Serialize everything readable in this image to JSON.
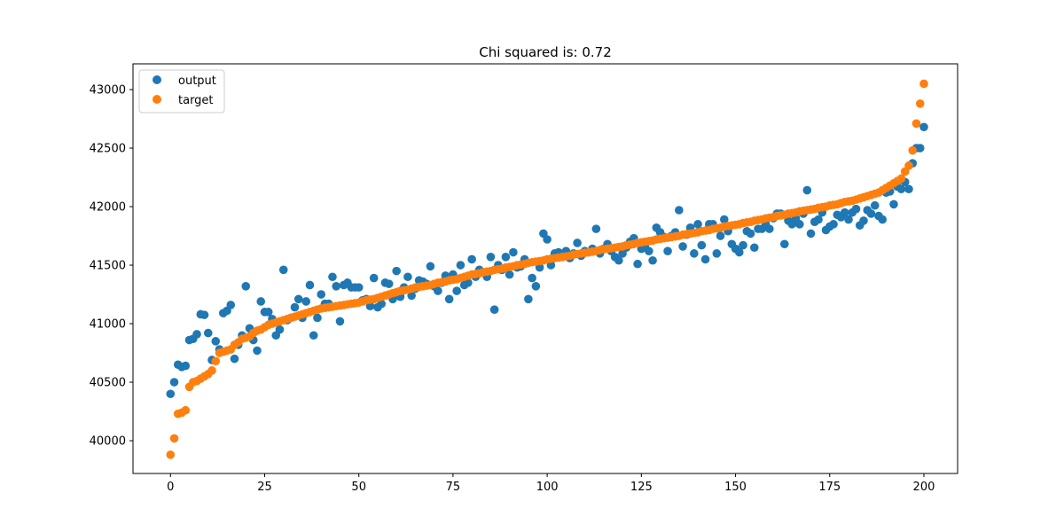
{
  "chart_data": {
    "type": "scatter",
    "title": "Chi squared is: 0.72",
    "xlabel": "",
    "ylabel": "",
    "xlim": [
      -9.95,
      208.95
    ],
    "ylim": [
      39720,
      43220
    ],
    "xticks": [
      0,
      25,
      50,
      75,
      100,
      125,
      150,
      175,
      200
    ],
    "yticks": [
      40000,
      40500,
      41000,
      41500,
      42000,
      42500,
      43000
    ],
    "grid": false,
    "legend_position": "top-left",
    "series": [
      {
        "name": "output",
        "color": "#1f77b4",
        "x_start": 0,
        "values": [
          40400,
          40500,
          40650,
          40630,
          40640,
          40860,
          40870,
          40910,
          41080,
          41075,
          40920,
          40690,
          40850,
          40780,
          41090,
          41110,
          41160,
          40700,
          40820,
          40900,
          41320,
          40960,
          40860,
          40770,
          41190,
          41100,
          41100,
          41040,
          40900,
          40950,
          41460,
          41030,
          41050,
          41140,
          41210,
          41050,
          41190,
          41330,
          40900,
          41050,
          41250,
          41170,
          41170,
          41400,
          41320,
          41020,
          41330,
          41350,
          41310,
          41310,
          41310,
          41200,
          41210,
          41150,
          41390,
          41140,
          41170,
          41350,
          41340,
          41210,
          41450,
          41230,
          41310,
          41400,
          41240,
          41300,
          41370,
          41360,
          41340,
          41490,
          41320,
          41280,
          41350,
          41410,
          41210,
          41420,
          41280,
          41500,
          41330,
          41350,
          41550,
          41400,
          41460,
          41440,
          41400,
          41570,
          41120,
          41500,
          41460,
          41570,
          41420,
          41610,
          41480,
          41490,
          41550,
          41210,
          41390,
          41320,
          41480,
          41770,
          41720,
          41500,
          41600,
          41610,
          41570,
          41620,
          41560,
          41600,
          41690,
          41580,
          41620,
          41610,
          41640,
          41810,
          41600,
          41640,
          41680,
          41620,
          41570,
          41540,
          41600,
          41650,
          41700,
          41730,
          41510,
          41640,
          41650,
          41620,
          41540,
          41820,
          41780,
          41740,
          41620,
          41750,
          41780,
          41970,
          41660,
          41760,
          41820,
          41600,
          41850,
          41670,
          41550,
          41850,
          41850,
          41600,
          41750,
          41890,
          41790,
          41680,
          41640,
          41610,
          41670,
          41790,
          41770,
          41650,
          41810,
          41810,
          41850,
          41810,
          41900,
          41940,
          41940,
          41680,
          41880,
          41850,
          41900,
          41850,
          41940,
          42140,
          41770,
          41870,
          41890,
          41950,
          41800,
          41830,
          41850,
          41930,
          41910,
          41950,
          41890,
          41950,
          41980,
          41840,
          41880,
          41970,
          41940,
          42010,
          41920,
          41890,
          42120,
          42130,
          42020,
          42170,
          42150,
          42210,
          42150,
          42370,
          42500,
          42500,
          42680
        ]
      },
      {
        "name": "target",
        "color": "#ff7f0e",
        "x_start": 0,
        "values": [
          39880,
          40020,
          40230,
          40240,
          40260,
          40460,
          40500,
          40510,
          40530,
          40550,
          40570,
          40600,
          40680,
          40750,
          40760,
          40770,
          40780,
          40820,
          40840,
          40870,
          40880,
          40890,
          40920,
          40940,
          40950,
          40970,
          40990,
          41000,
          41010,
          41020,
          41030,
          41040,
          41050,
          41060,
          41070,
          41080,
          41090,
          41100,
          41110,
          41120,
          41130,
          41135,
          41140,
          41145,
          41150,
          41155,
          41160,
          41165,
          41170,
          41175,
          41180,
          41190,
          41200,
          41205,
          41210,
          41220,
          41230,
          41240,
          41250,
          41260,
          41270,
          41280,
          41285,
          41290,
          41300,
          41310,
          41315,
          41320,
          41325,
          41330,
          41340,
          41350,
          41355,
          41360,
          41370,
          41375,
          41380,
          41390,
          41400,
          41410,
          41420,
          41425,
          41430,
          41440,
          41445,
          41450,
          41460,
          41465,
          41470,
          41480,
          41485,
          41490,
          41500,
          41505,
          41510,
          41520,
          41525,
          41530,
          41535,
          41540,
          41550,
          41555,
          41560,
          41565,
          41570,
          41575,
          41580,
          41590,
          41595,
          41600,
          41605,
          41610,
          41615,
          41620,
          41630,
          41635,
          41640,
          41645,
          41650,
          41655,
          41660,
          41670,
          41675,
          41680,
          41690,
          41695,
          41700,
          41705,
          41710,
          41720,
          41725,
          41730,
          41735,
          41740,
          41745,
          41750,
          41760,
          41765,
          41770,
          41775,
          41780,
          41790,
          41795,
          41800,
          41810,
          41815,
          41820,
          41830,
          41835,
          41840,
          41845,
          41850,
          41860,
          41865,
          41870,
          41880,
          41885,
          41890,
          41900,
          41905,
          41910,
          41920,
          41925,
          41930,
          41940,
          41945,
          41950,
          41960,
          41965,
          41970,
          41975,
          41980,
          41990,
          41995,
          42000,
          42010,
          42015,
          42020,
          42030,
          42040,
          42045,
          42050,
          42060,
          42070,
          42080,
          42090,
          42100,
          42110,
          42120,
          42140,
          42160,
          42180,
          42200,
          42220,
          42240,
          42300,
          42350,
          42480,
          42710,
          42880,
          43050
        ]
      }
    ]
  }
}
